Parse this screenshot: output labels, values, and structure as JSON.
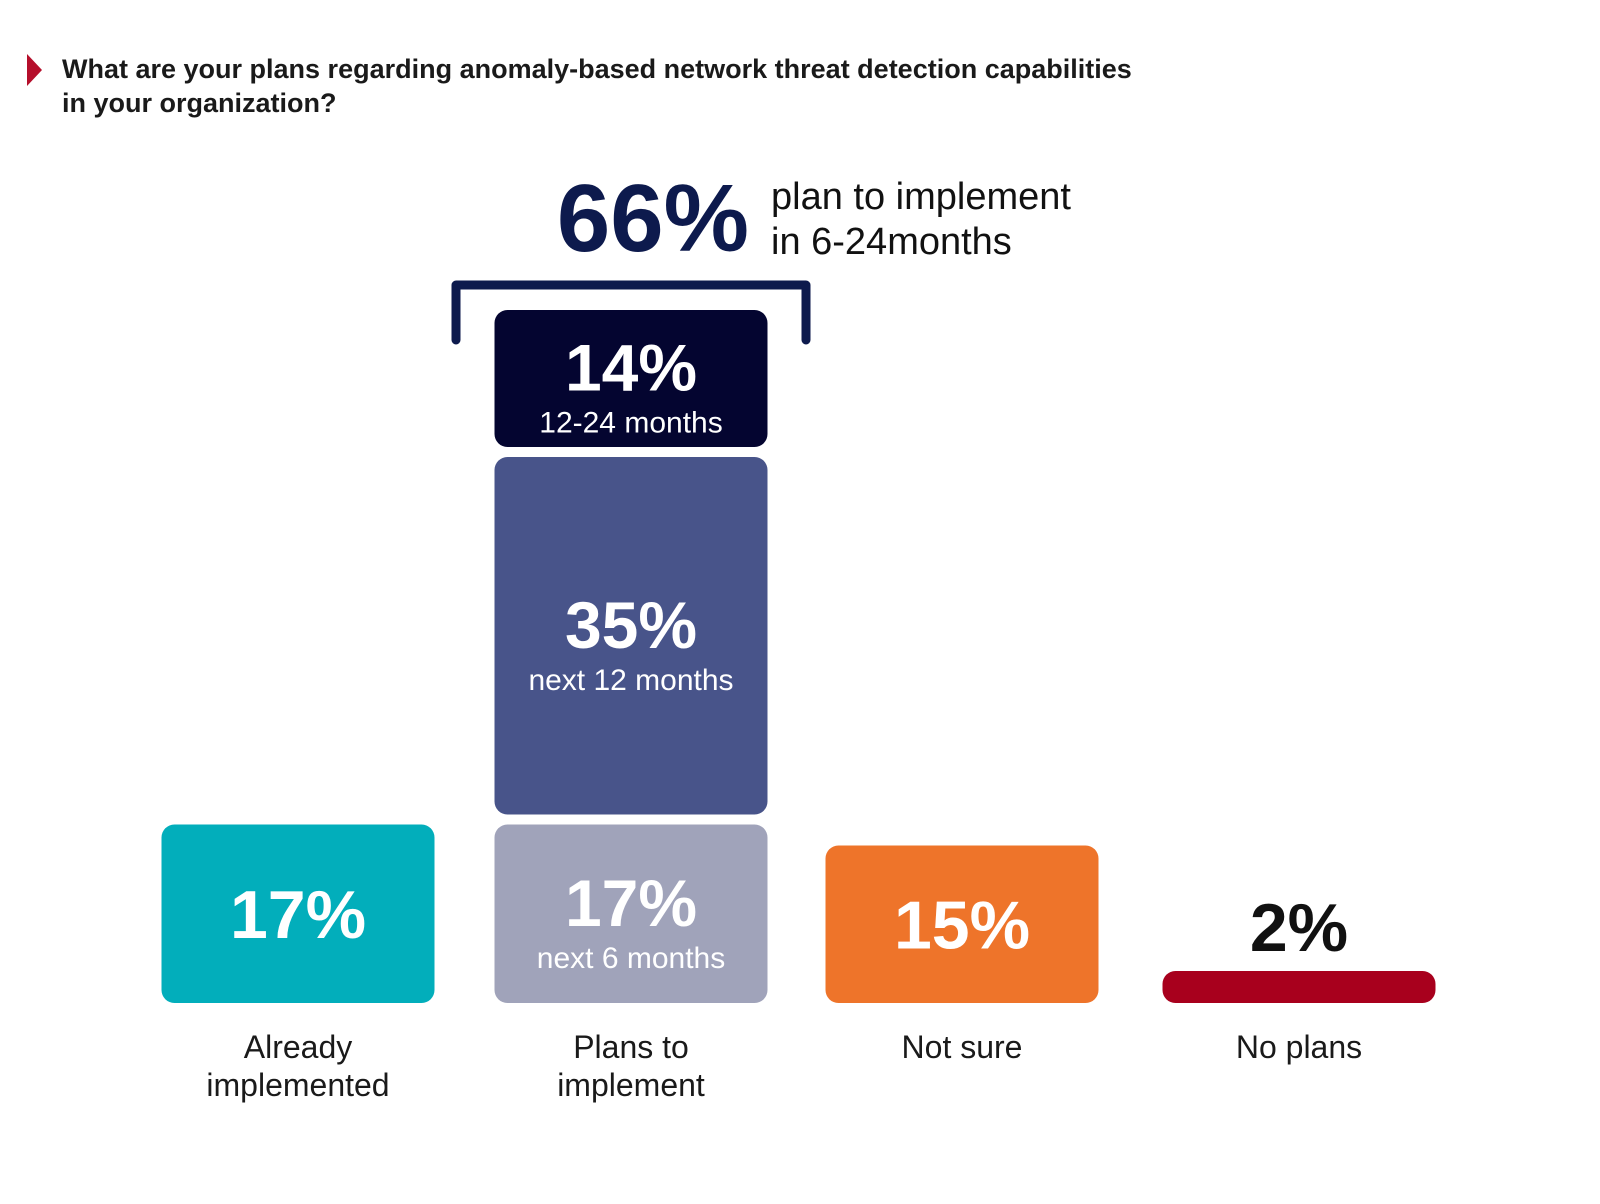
{
  "chart_data": {
    "type": "bar",
    "title": "What are your plans regarding anomaly-based network threat detection capabilities in your organization?",
    "title_lines": [
      "What are your plans regarding anomaly-based network threat detection capabilities",
      "in your organization?"
    ],
    "unit": "%",
    "categories": [
      {
        "label_lines": [
          "Already",
          "implemented"
        ],
        "value": 17,
        "value_text": "17%",
        "color": "#02aebb"
      },
      {
        "label_lines": [
          "Plans to",
          "implement"
        ],
        "stacked": true,
        "segments": [
          {
            "value": 17,
            "value_text": "17%",
            "sublabel": "next 6 months",
            "color": "#a0a3ba"
          },
          {
            "value": 35,
            "value_text": "35%",
            "sublabel": "next 12 months",
            "color": "#48548a"
          },
          {
            "value": 14,
            "value_text": "14%",
            "sublabel": "12-24 months",
            "color": "#040530"
          }
        ]
      },
      {
        "label_lines": [
          "Not sure"
        ],
        "value": 15,
        "value_text": "15%",
        "color": "#ee742a"
      },
      {
        "label_lines": [
          "No plans"
        ],
        "value": 2,
        "value_text": "2%",
        "color": "#a8001d"
      }
    ],
    "callout": {
      "value_text": "66%",
      "text_lines": [
        "plan to implement",
        "in 6-24months"
      ],
      "color": "#0d1a4d"
    },
    "colors": {
      "title_marker": "#b50f2b",
      "title_text": "#1a1a1a",
      "label_text": "#1a1a1a"
    },
    "grid": false,
    "legend": "none"
  }
}
